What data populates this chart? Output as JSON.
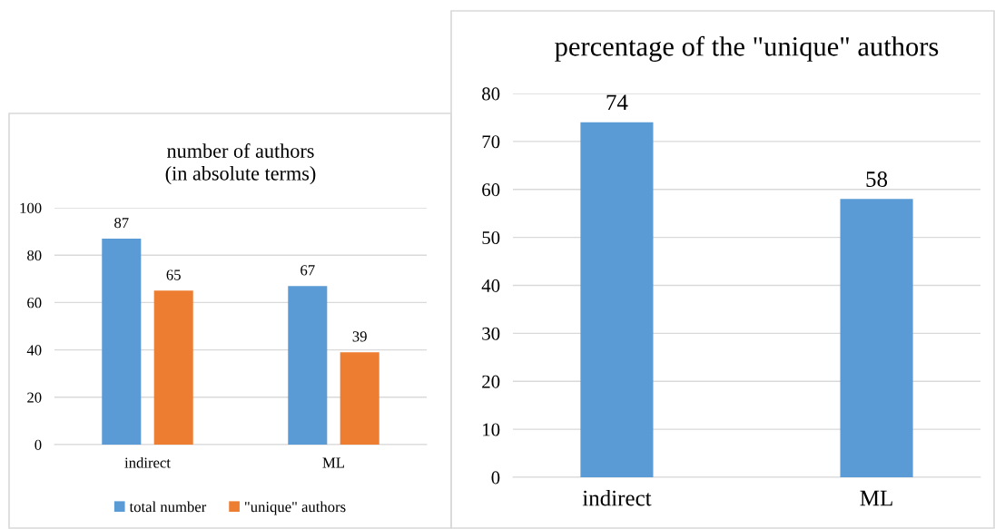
{
  "chart_data": [
    {
      "type": "bar",
      "title": "number of authors\n(in absolute terms)",
      "categories": [
        "indirect",
        "ML"
      ],
      "series": [
        {
          "name": "total number",
          "color": "#5b9bd5",
          "values": [
            87,
            67
          ]
        },
        {
          "name": "\"unique\" authors",
          "color": "#ed7d31",
          "values": [
            65,
            39
          ]
        }
      ],
      "ylim": [
        0,
        100
      ],
      "yticks": [
        0,
        20,
        40,
        60,
        80,
        100
      ],
      "grid": "y",
      "legend": "bottom",
      "data_labels": true
    },
    {
      "type": "bar",
      "title": "percentage of the \"unique\" authors",
      "categories": [
        "indirect",
        "ML"
      ],
      "series": [
        {
          "color": "#5b9bd5",
          "values": [
            74,
            58
          ]
        }
      ],
      "ylim": [
        0,
        80
      ],
      "yticks": [
        0,
        10,
        20,
        30,
        40,
        50,
        60,
        70,
        80
      ],
      "grid": "y",
      "data_labels": true
    }
  ]
}
